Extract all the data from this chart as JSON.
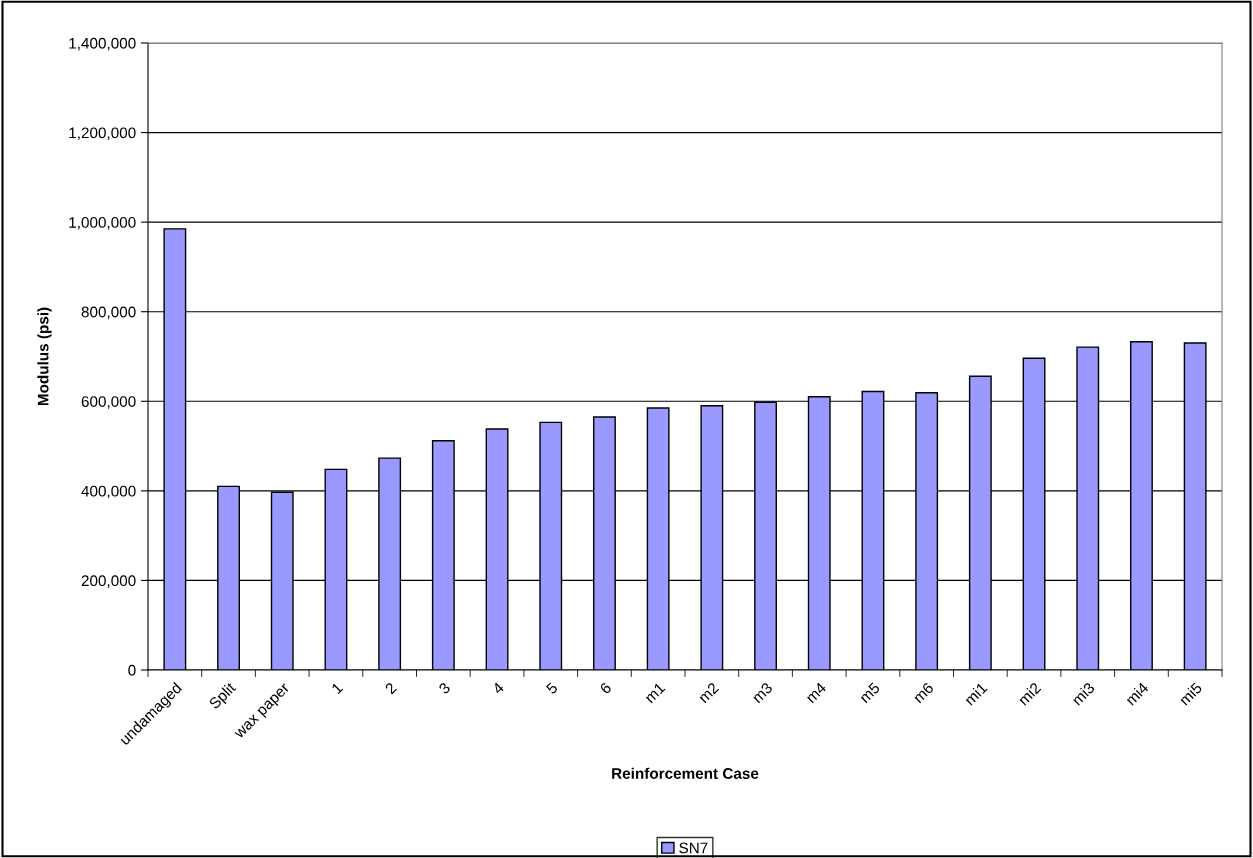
{
  "chart_data": {
    "type": "bar",
    "xlabel": "Reinforcement Case",
    "ylabel": "Modulus (psi)",
    "categories": [
      "undamaged",
      "Split",
      "wax paper",
      "1",
      "2",
      "3",
      "4",
      "5",
      "6",
      "m1",
      "m2",
      "m3",
      "m4",
      "m5",
      "m6",
      "mi1",
      "mi2",
      "mi3",
      "mi4",
      "mi5"
    ],
    "series": [
      {
        "name": "SN7",
        "color": "#9999ff",
        "values": [
          985000,
          410000,
          397000,
          448000,
          473000,
          512000,
          538000,
          553000,
          565000,
          585000,
          590000,
          598000,
          610000,
          622000,
          619000,
          656000,
          696000,
          721000,
          733000,
          730000
        ]
      }
    ],
    "ylim": [
      0,
      1400000
    ],
    "yticks": [
      {
        "value": 0,
        "label": "0"
      },
      {
        "value": 200000,
        "label": "200,000"
      },
      {
        "value": 400000,
        "label": "400,000"
      },
      {
        "value": 600000,
        "label": "600,000"
      },
      {
        "value": 800000,
        "label": "800,000"
      },
      {
        "value": 1000000,
        "label": "1,000,000"
      },
      {
        "value": 1200000,
        "label": "1,200,000"
      },
      {
        "value": 1400000,
        "label": "1,400,000"
      }
    ],
    "grid": "y",
    "legend": "bottom"
  }
}
